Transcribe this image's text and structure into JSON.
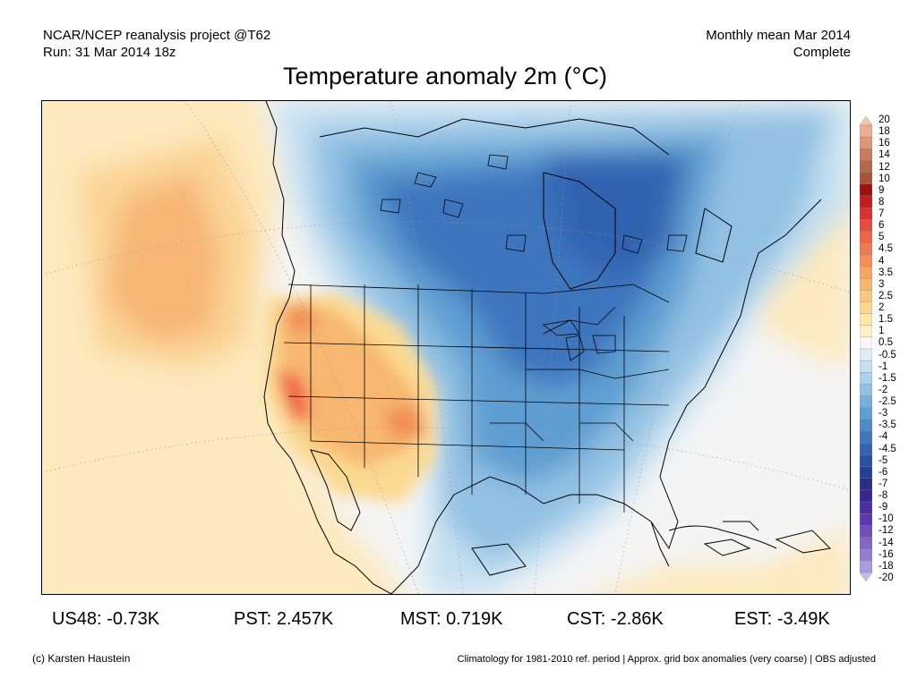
{
  "header": {
    "left_line1": "NCAR/NCEP reanalysis project @T62",
    "left_line2": "Run: 31 Mar 2014 18z",
    "right_line1": "Monthly mean Mar 2014",
    "right_line2": "Complete"
  },
  "title": "Temperature anomaly 2m (°C)",
  "colorbar": {
    "labels": [
      "20",
      "18",
      "16",
      "14",
      "12",
      "10",
      "9",
      "8",
      "7",
      "6",
      "5",
      "4.5",
      "4",
      "3.5",
      "3",
      "2.5",
      "2",
      "1.5",
      "1",
      "0.5",
      "-0.5",
      "-1",
      "-1.5",
      "-2",
      "-2.5",
      "-3",
      "-3.5",
      "-4",
      "-4.5",
      "-5",
      "-6",
      "-7",
      "-8",
      "-9",
      "-10",
      "-12",
      "-14",
      "-16",
      "-18",
      "-20"
    ],
    "colors": [
      "#f2c9b0",
      "#e9ae93",
      "#dd9678",
      "#c97b5e",
      "#b8674a",
      "#a4543a",
      "#9b1111",
      "#c21c1c",
      "#d93131",
      "#e84a3e",
      "#ef6549",
      "#f07a50",
      "#f28f58",
      "#f6a462",
      "#f7b76f",
      "#f9c97f",
      "#fbd991",
      "#fce6a8",
      "#fdf1c8",
      "#f7f7f7",
      "#dcecf7",
      "#c6e0f2",
      "#acd1eb",
      "#92c1e3",
      "#78b0db",
      "#5e9ed2",
      "#4d8ac8",
      "#3e76bd",
      "#3264b1",
      "#2a52a4",
      "#253f94",
      "#2a2f86",
      "#3a2691",
      "#4c2ea0",
      "#5c3aad",
      "#6e4fbb",
      "#8066c7",
      "#937fd2",
      "#aa9bde",
      "#c5bbea"
    ]
  },
  "regions": [
    {
      "label": "US48:",
      "value": "-0.73K"
    },
    {
      "label": "PST:",
      "value": "2.457K"
    },
    {
      "label": "MST:",
      "value": "0.719K"
    },
    {
      "label": "CST:",
      "value": "-2.86K"
    },
    {
      "label": "EST:",
      "value": "-3.49K"
    }
  ],
  "credit": "(c) Karsten Haustein",
  "footnote": "Climatology for 1981-2010 ref. period | Approx. grid box anomalies (very coarse) | OBS adjusted"
}
